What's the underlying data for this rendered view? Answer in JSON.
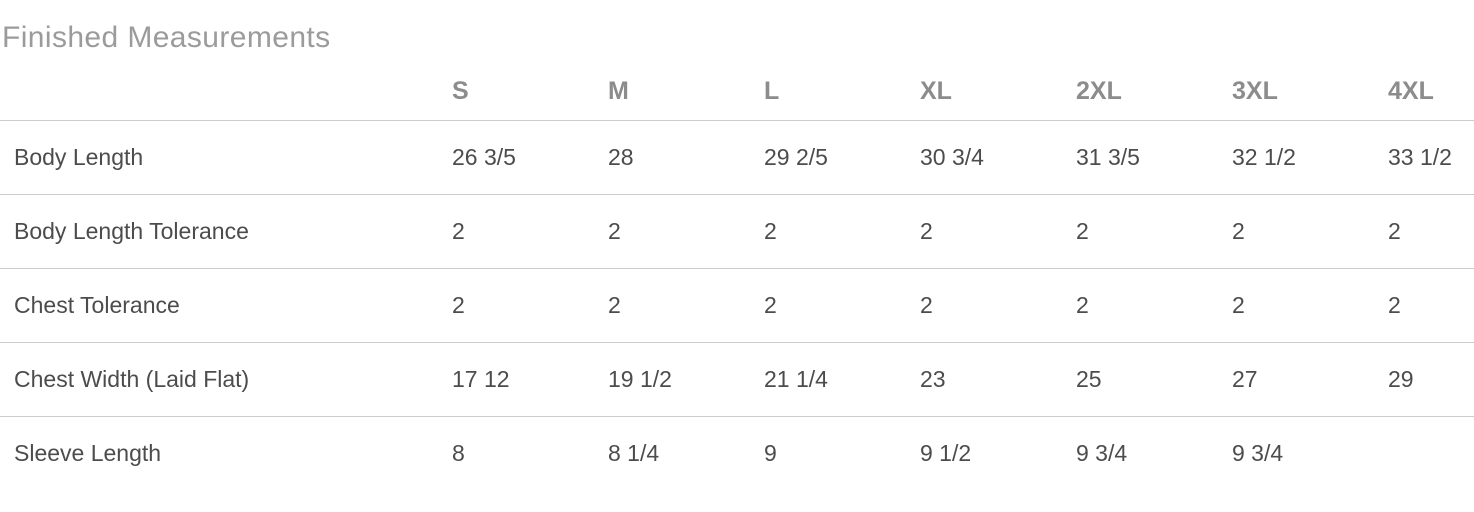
{
  "page": {
    "title": "Finished Measurements"
  },
  "colors": {
    "title_text": "#9b9b9b",
    "header_text": "#8c8c8c",
    "body_text": "#4c4c4c",
    "divider": "#cccccc",
    "background": "#ffffff"
  },
  "table": {
    "columns": [
      "S",
      "M",
      "L",
      "XL",
      "2XL",
      "3XL",
      "4XL"
    ],
    "rows": [
      {
        "label": "Body Length",
        "values": [
          "26 3/5",
          "28",
          "29 2/5",
          "30 3/4",
          "31 3/5",
          "32 1/2",
          "33 1/2"
        ]
      },
      {
        "label": "Body Length Tolerance",
        "values": [
          "2",
          "2",
          "2",
          "2",
          "2",
          "2",
          "2"
        ]
      },
      {
        "label": "Chest Tolerance",
        "values": [
          "2",
          "2",
          "2",
          "2",
          "2",
          "2",
          "2"
        ]
      },
      {
        "label": "Chest Width (Laid Flat)",
        "values": [
          "17 12",
          "19 1/2",
          "21 1/4",
          "23",
          "25",
          "27",
          "29"
        ]
      },
      {
        "label": "Sleeve Length",
        "values": [
          "8",
          "8 1/4",
          "9",
          "9 1/2",
          "9 3/4",
          "9 3/4",
          ""
        ]
      }
    ]
  }
}
